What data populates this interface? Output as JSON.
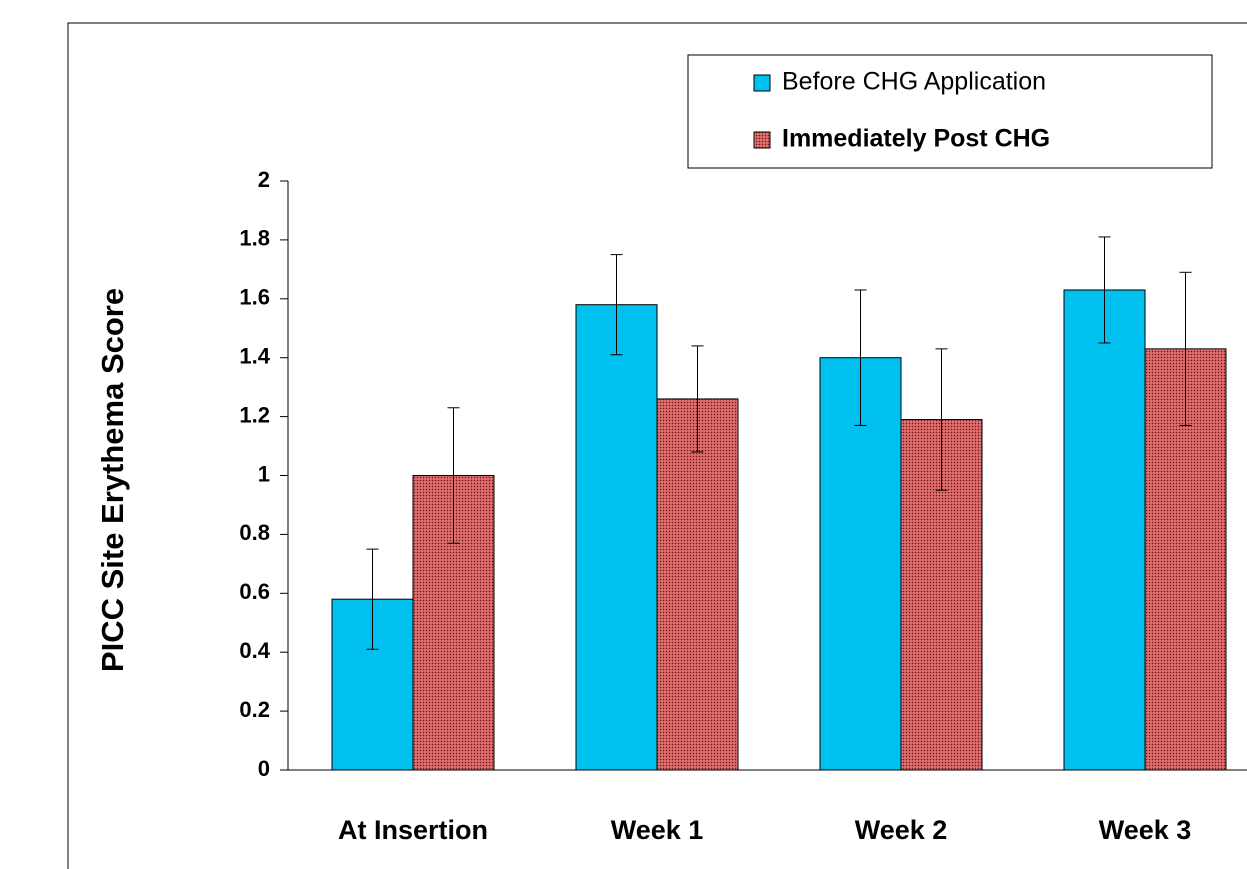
{
  "chart_data": {
    "type": "bar",
    "y_axis_label": "PICC Site Erythema Score",
    "categories": [
      "At Insertion",
      "Week 1",
      "Week 2",
      "Week 3"
    ],
    "series": [
      {
        "name": "Before CHG Application",
        "color": "#00c0f0",
        "values": [
          0.58,
          1.58,
          1.4,
          1.63
        ],
        "errors": [
          0.17,
          0.17,
          0.23,
          0.18
        ]
      },
      {
        "name": "Immediately Post CHG",
        "color": "#d25a5a",
        "pattern": "hatched",
        "values": [
          1.0,
          1.26,
          1.19,
          1.43
        ],
        "errors": [
          0.23,
          0.18,
          0.24,
          0.26
        ]
      }
    ],
    "ylim": [
      0,
      2
    ],
    "yticks": [
      0,
      0.2,
      0.4,
      0.6,
      0.8,
      1,
      1.2,
      1.4,
      1.6,
      1.8,
      2
    ],
    "error_bars": true,
    "legend": "top-right"
  }
}
